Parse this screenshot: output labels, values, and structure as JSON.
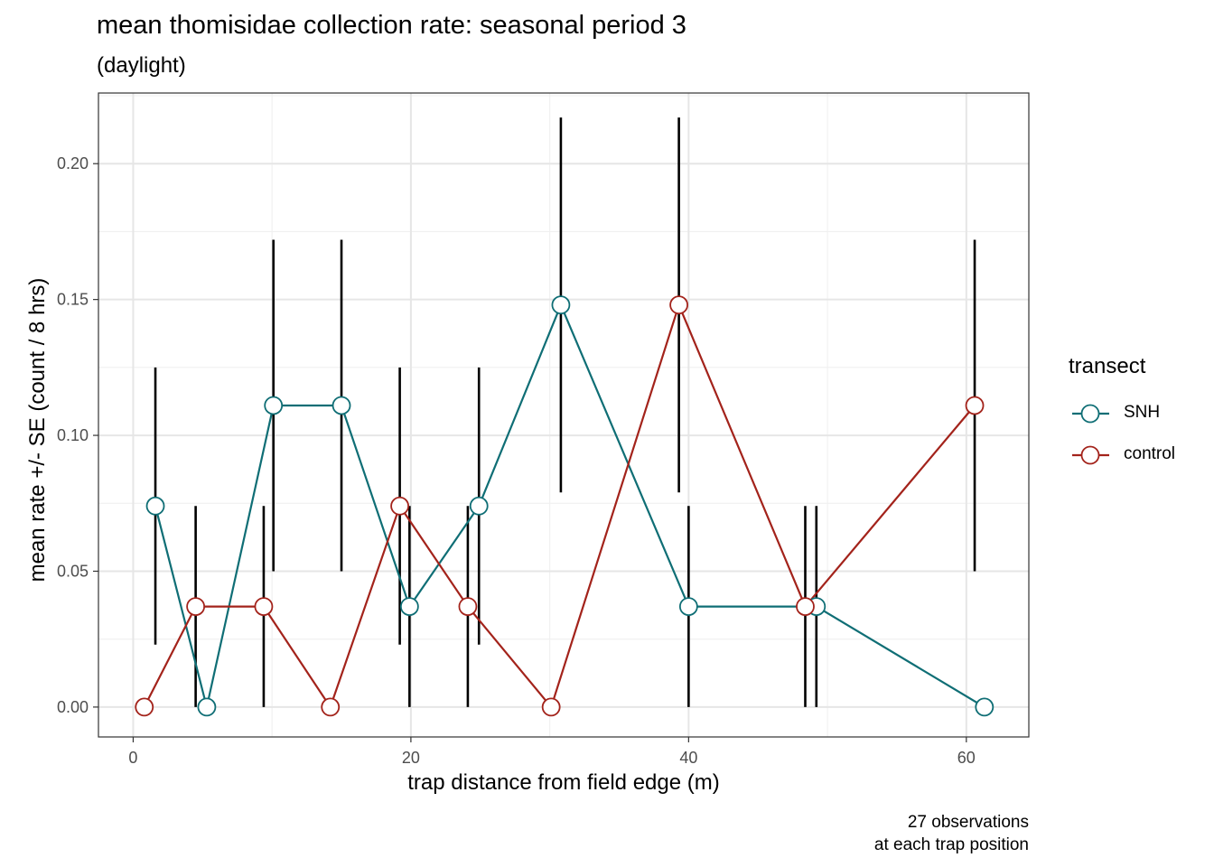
{
  "title": "mean thomisidae collection rate: seasonal period 3",
  "subtitle": "(daylight)",
  "caption_line1": "27 observations",
  "caption_line2": "at each trap position",
  "chart_data": {
    "type": "line",
    "xlabel": "trap distance from field edge (m)",
    "ylabel": "mean rate +/- SE (count / 8 hrs)",
    "xlim": [
      -2.5,
      64.5
    ],
    "ylim": [
      -0.011,
      0.226
    ],
    "x_ticks": [
      0,
      20,
      40,
      60
    ],
    "x_tick_labels": [
      "0",
      "20",
      "40",
      "60"
    ],
    "y_ticks": [
      0.0,
      0.05,
      0.1,
      0.15,
      0.2
    ],
    "y_tick_labels": [
      "0.00",
      "0.05",
      "0.10",
      "0.15",
      "0.20"
    ],
    "grid": true,
    "legend": {
      "title": "transect",
      "placement": "right"
    },
    "series": [
      {
        "name": "SNH",
        "color": "#0f6e75",
        "points": [
          {
            "x": 1.6,
            "y": 0.074,
            "lo": 0.023,
            "hi": 0.125
          },
          {
            "x": 5.3,
            "y": 0.0,
            "lo": 0.0,
            "hi": 0.0
          },
          {
            "x": 10.1,
            "y": 0.111,
            "lo": 0.05,
            "hi": 0.172
          },
          {
            "x": 15.0,
            "y": 0.111,
            "lo": 0.05,
            "hi": 0.172
          },
          {
            "x": 19.9,
            "y": 0.037,
            "lo": 0.0,
            "hi": 0.074
          },
          {
            "x": 24.9,
            "y": 0.074,
            "lo": 0.023,
            "hi": 0.125
          },
          {
            "x": 30.8,
            "y": 0.148,
            "lo": 0.079,
            "hi": 0.217
          },
          {
            "x": 40.0,
            "y": 0.037,
            "lo": 0.0,
            "hi": 0.074
          },
          {
            "x": 49.2,
            "y": 0.037,
            "lo": 0.0,
            "hi": 0.074
          },
          {
            "x": 61.3,
            "y": 0.0,
            "lo": 0.0,
            "hi": 0.0
          }
        ]
      },
      {
        "name": "control",
        "color": "#a3231b",
        "points": [
          {
            "x": 0.8,
            "y": 0.0,
            "lo": 0.0,
            "hi": 0.0
          },
          {
            "x": 4.5,
            "y": 0.037,
            "lo": 0.0,
            "hi": 0.074
          },
          {
            "x": 9.4,
            "y": 0.037,
            "lo": 0.0,
            "hi": 0.074
          },
          {
            "x": 14.2,
            "y": 0.0,
            "lo": 0.0,
            "hi": 0.0
          },
          {
            "x": 19.2,
            "y": 0.074,
            "lo": 0.023,
            "hi": 0.125
          },
          {
            "x": 24.1,
            "y": 0.037,
            "lo": 0.0,
            "hi": 0.074
          },
          {
            "x": 30.1,
            "y": 0.0,
            "lo": 0.0,
            "hi": 0.0
          },
          {
            "x": 39.3,
            "y": 0.148,
            "lo": 0.079,
            "hi": 0.217
          },
          {
            "x": 48.4,
            "y": 0.037,
            "lo": 0.0,
            "hi": 0.074
          },
          {
            "x": 60.6,
            "y": 0.111,
            "lo": 0.05,
            "hi": 0.172
          }
        ]
      }
    ]
  }
}
